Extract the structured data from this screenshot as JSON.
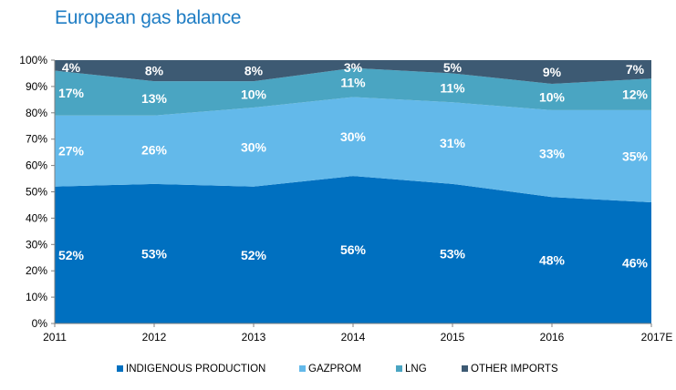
{
  "chart_data": {
    "type": "area",
    "stacked": true,
    "title": "European gas balance",
    "categories": [
      "2011",
      "2012",
      "2013",
      "2014",
      "2015",
      "2016",
      "2017E"
    ],
    "y_ticks": [
      "0%",
      "10%",
      "20%",
      "30%",
      "40%",
      "50%",
      "60%",
      "70%",
      "80%",
      "90%",
      "100%"
    ],
    "ylim": [
      0,
      100
    ],
    "legend_position": "bottom",
    "series": [
      {
        "name": "INDIGENOUS PRODUCTION",
        "color": "#0070c0",
        "values": [
          52,
          53,
          52,
          56,
          53,
          48,
          46
        ],
        "labels": [
          "52%",
          "53%",
          "52%",
          "56%",
          "53%",
          "48%",
          "46%"
        ]
      },
      {
        "name": "GAZPROM",
        "color": "#63b9ea",
        "values": [
          27,
          26,
          30,
          30,
          31,
          33,
          35
        ],
        "labels": [
          "27%",
          "26%",
          "30%",
          "30%",
          "31%",
          "33%",
          "35%"
        ]
      },
      {
        "name": "LNG",
        "color": "#4aa5c2",
        "values": [
          17,
          13,
          10,
          11,
          11,
          10,
          12
        ],
        "labels": [
          "17%",
          "13%",
          "10%",
          "11%",
          "11%",
          "10%",
          "12%"
        ]
      },
      {
        "name": "OTHER IMPORTS",
        "color": "#3d5a73",
        "values": [
          4,
          8,
          8,
          3,
          5,
          9,
          7
        ],
        "labels": [
          "4%",
          "8%",
          "8%",
          "3%",
          "5%",
          "9%",
          "7%"
        ]
      }
    ]
  }
}
